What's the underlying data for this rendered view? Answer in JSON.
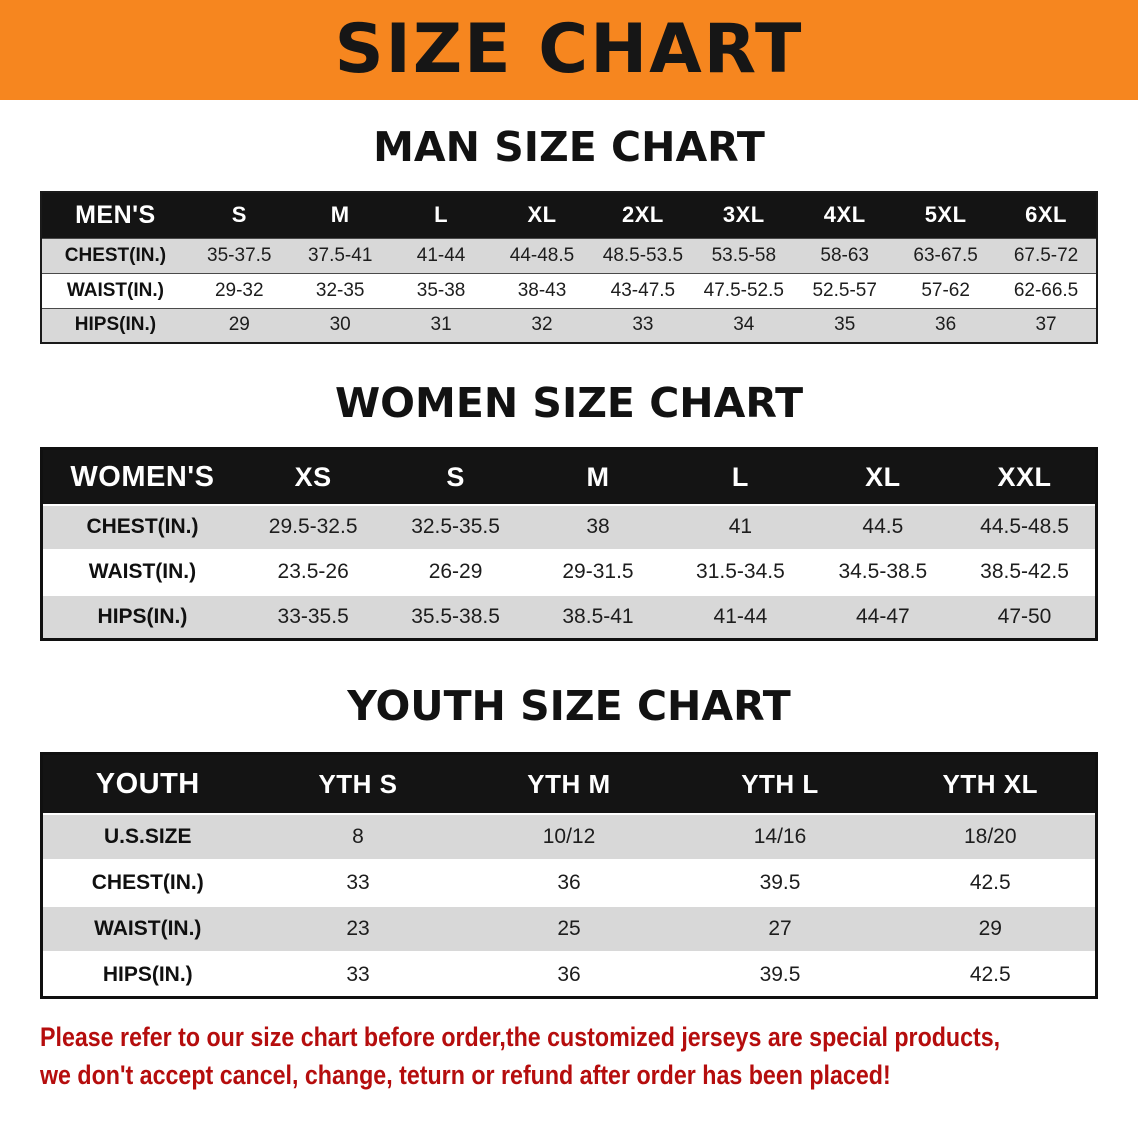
{
  "banner": {
    "title": "SIZE CHART"
  },
  "theme": {
    "banner-bg": "#f6861f",
    "banner-text": "#161616",
    "header-bg": "#141414",
    "header-text": "#ffffff",
    "row-alt-bg": "#d8d8d8",
    "note-color": "#b50d0d"
  },
  "chart_data": [
    {
      "type": "table",
      "title": "MAN SIZE CHART",
      "header": [
        "MEN'S",
        "S",
        "M",
        "L",
        "XL",
        "2XL",
        "3XL",
        "4XL",
        "5XL",
        "6XL"
      ],
      "rows": [
        [
          "CHEST(IN.)",
          "35-37.5",
          "37.5-41",
          "41-44",
          "44-48.5",
          "48.5-53.5",
          "53.5-58",
          "58-63",
          "63-67.5",
          "67.5-72"
        ],
        [
          "WAIST(IN.)",
          "29-32",
          "32-35",
          "35-38",
          "38-43",
          "43-47.5",
          "47.5-52.5",
          "52.5-57",
          "57-62",
          "62-66.5"
        ],
        [
          "HIPS(IN.)",
          "29",
          "30",
          "31",
          "32",
          "33",
          "34",
          "35",
          "36",
          "37"
        ]
      ]
    },
    {
      "type": "table",
      "title": "WOMEN SIZE CHART",
      "header": [
        "WOMEN'S",
        "XS",
        "S",
        "M",
        "L",
        "XL",
        "XXL"
      ],
      "rows": [
        [
          "CHEST(IN.)",
          "29.5-32.5",
          "32.5-35.5",
          "38",
          "41",
          "44.5",
          "44.5-48.5"
        ],
        [
          "WAIST(IN.)",
          "23.5-26",
          "26-29",
          "29-31.5",
          "31.5-34.5",
          "34.5-38.5",
          "38.5-42.5"
        ],
        [
          "HIPS(IN.)",
          "33-35.5",
          "35.5-38.5",
          "38.5-41",
          "41-44",
          "44-47",
          "47-50"
        ]
      ]
    },
    {
      "type": "table",
      "title": "YOUTH SIZE CHART",
      "header": [
        "YOUTH",
        "YTH S",
        "YTH M",
        "YTH L",
        "YTH XL"
      ],
      "rows": [
        [
          "U.S.SIZE",
          "8",
          "10/12",
          "14/16",
          "18/20"
        ],
        [
          "CHEST(IN.)",
          "33",
          "36",
          "39.5",
          "42.5"
        ],
        [
          "WAIST(IN.)",
          "23",
          "25",
          "27",
          "29"
        ],
        [
          "HIPS(IN.)",
          "33",
          "36",
          "39.5",
          "42.5"
        ]
      ]
    }
  ],
  "footer_note": {
    "line1": "Please refer to our size chart before order,the customized jerseys are special products,",
    "line2": "we don't accept cancel, change, teturn or refund after order has been placed!"
  }
}
